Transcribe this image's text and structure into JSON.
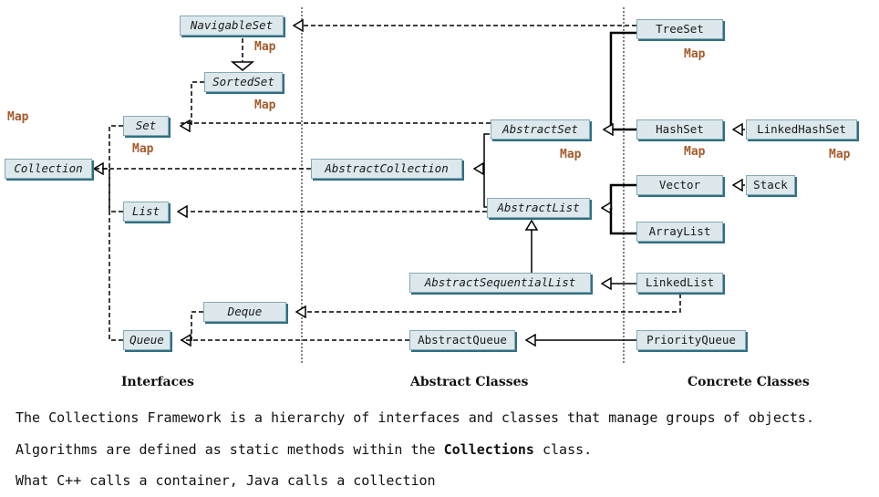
{
  "nodes": {
    "navigable_set": "NavigableSet",
    "sorted_set": "SortedSet",
    "set": "Set",
    "collection": "Collection",
    "list": "List",
    "deque": "Deque",
    "queue": "Queue",
    "abstract_collection": "AbstractCollection",
    "abstract_set": "AbstractSet",
    "abstract_list": "AbstractList",
    "abstract_sequential_list": "AbstractSequentialList",
    "abstract_queue": "AbstractQueue",
    "tree_set": "TreeSet",
    "hash_set": "HashSet",
    "linked_hash_set": "LinkedHashSet",
    "vector": "Vector",
    "stack": "Stack",
    "array_list": "ArrayList",
    "linked_list": "LinkedList",
    "priority_queue": "PriorityQueue"
  },
  "map_label": "Map",
  "sections": {
    "interfaces": "Interfaces",
    "abstract_classes": "Abstract Classes",
    "concrete_classes": "Concrete Classes"
  },
  "notes": {
    "line1": "The Collections Framework is a hierarchy of interfaces and classes that manage groups of objects.",
    "line2_before": "Algorithms are defined as static methods within the ",
    "line2_bold": "Collections",
    "line2_after": " class.",
    "line3": "What C++ calls a container, Java calls a collection"
  },
  "colors": {
    "box_fill": "#dce8ec",
    "box_shadow": "#2f6f82",
    "map_text": "#a55a2a"
  }
}
